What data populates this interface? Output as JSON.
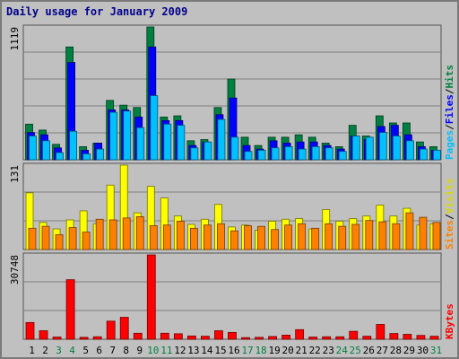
{
  "chart_data": [
    {
      "type": "bar",
      "title": "Daily usage for January 2009",
      "panel": "top",
      "ymax_label": "1119",
      "ylim": [
        0,
        1119
      ],
      "categories": [
        "1",
        "2",
        "3",
        "4",
        "5",
        "6",
        "7",
        "8",
        "9",
        "10",
        "11",
        "12",
        "13",
        "14",
        "15",
        "16",
        "17",
        "18",
        "19",
        "20",
        "21",
        "22",
        "23",
        "24",
        "25",
        "26",
        "27",
        "28",
        "29",
        "30",
        "31"
      ],
      "weekend_days": [
        "3",
        "4",
        "10",
        "11",
        "17",
        "18",
        "24",
        "25",
        "31"
      ],
      "right_label_parts": [
        "Pages",
        "/",
        "Files",
        "/",
        "Hits"
      ],
      "series": [
        {
          "name": "Hits",
          "color": "#008040",
          "values": [
            300,
            250,
            130,
            950,
            110,
            140,
            500,
            460,
            440,
            1119,
            360,
            370,
            160,
            170,
            440,
            680,
            190,
            120,
            190,
            190,
            210,
            190,
            140,
            110,
            290,
            200,
            370,
            310,
            310,
            150,
            110
          ]
        },
        {
          "name": "Files",
          "color": "#0000ff",
          "values": [
            230,
            210,
            100,
            820,
            80,
            140,
            420,
            420,
            360,
            950,
            330,
            330,
            120,
            150,
            380,
            520,
            120,
            90,
            160,
            140,
            150,
            150,
            120,
            90,
            200,
            170,
            280,
            290,
            210,
            110,
            80
          ]
        },
        {
          "name": "Pages",
          "color": "#00c0ff",
          "values": [
            200,
            160,
            60,
            240,
            50,
            90,
            400,
            410,
            270,
            540,
            300,
            290,
            100,
            150,
            340,
            190,
            70,
            80,
            100,
            110,
            90,
            110,
            100,
            70,
            200,
            190,
            230,
            200,
            160,
            90,
            80
          ]
        }
      ]
    },
    {
      "type": "bar",
      "panel": "middle",
      "ymax_label": "131",
      "ylim": [
        0,
        131
      ],
      "right_label_parts": [
        "Sites",
        "/",
        "Visits"
      ],
      "series": [
        {
          "name": "Visits",
          "color": "#ffff00",
          "values": [
            88,
            42,
            32,
            46,
            60,
            40,
            100,
            131,
            57,
            98,
            80,
            52,
            39,
            47,
            70,
            35,
            38,
            30,
            44,
            47,
            48,
            32,
            62,
            44,
            48,
            52,
            69,
            52,
            64,
            38,
            40
          ]
        },
        {
          "name": "Sites",
          "color": "#ff8000",
          "values": [
            33,
            36,
            23,
            34,
            27,
            47,
            46,
            49,
            51,
            37,
            38,
            44,
            33,
            38,
            40,
            29,
            37,
            36,
            31,
            38,
            40,
            33,
            40,
            36,
            39,
            45,
            43,
            40,
            57,
            50,
            42
          ]
        }
      ]
    },
    {
      "type": "bar",
      "panel": "bottom",
      "ymax_label": "30748",
      "ylim": [
        0,
        30748
      ],
      "right_label_parts": [
        "KBytes"
      ],
      "series": [
        {
          "name": "KBytes",
          "color": "#ff0000",
          "values": [
            6100,
            3100,
            800,
            21700,
            700,
            900,
            6600,
            8000,
            2200,
            30748,
            2200,
            2000,
            1200,
            1100,
            3100,
            2500,
            600,
            700,
            1000,
            1500,
            3500,
            800,
            900,
            900,
            2900,
            1100,
            5400,
            2100,
            1800,
            1400,
            1100
          ]
        }
      ]
    }
  ]
}
